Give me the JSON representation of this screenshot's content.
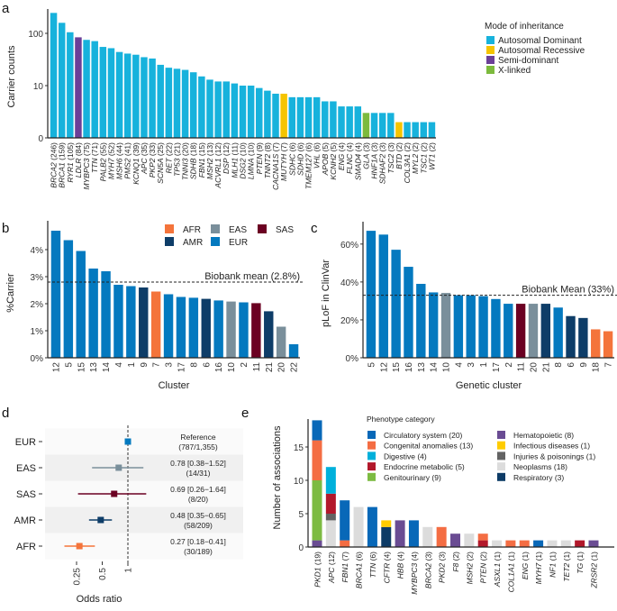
{
  "colors": {
    "inheritance": {
      "Autosomal Dominant": "#17b2dc",
      "Autosomal Recessive": "#f5c400",
      "Semi-dominant": "#6b3f98",
      "X-linked": "#7cba3d"
    },
    "ancestry": {
      "AFR": "#f4743b",
      "AMR": "#0e3d68",
      "EAS": "#7a8f9b",
      "EUR": "#0479bf",
      "SAS": "#6b0022"
    },
    "phenotype": {
      "Circulatory system": "#0868b8",
      "Congenital anomalies": "#f46d43",
      "Digestive": "#00b0db",
      "Endocrine metabolic": "#b2182b",
      "Genitourinary": "#7dbb42",
      "Hematopoietic": "#6a4c93",
      "Infectious diseases": "#ffcc00",
      "Injuries & poisonings": "#636363",
      "Neoplasms": "#dcdcdc",
      "Respiratory": "#0d3b66"
    }
  },
  "chart_data": [
    {
      "panel": "a",
      "type": "bar",
      "ylabel": "Carrier counts",
      "yscale": "log",
      "yticks": [
        {
          "value": 1,
          "label": "0"
        },
        {
          "value": 10,
          "label": "10"
        },
        {
          "value": 100,
          "label": "100"
        }
      ],
      "legend_title": "Mode of inheritance",
      "legend_placement": "top-right",
      "legend": [
        "Autosomal Dominant",
        "Autosomal Recessive",
        "Semi-dominant",
        "X-linked"
      ],
      "bars": [
        {
          "gene": "BRCA2",
          "count": 246,
          "mode": "Autosomal Dominant"
        },
        {
          "gene": "BRCA1",
          "count": 159,
          "mode": "Autosomal Dominant"
        },
        {
          "gene": "RYR1",
          "count": 105,
          "mode": "Autosomal Dominant"
        },
        {
          "gene": "LDLR",
          "count": 84,
          "mode": "Semi-dominant"
        },
        {
          "gene": "MYBPC3",
          "count": 75,
          "mode": "Autosomal Dominant"
        },
        {
          "gene": "TTN",
          "count": 71,
          "mode": "Autosomal Dominant"
        },
        {
          "gene": "PALB2",
          "count": 55,
          "mode": "Autosomal Dominant"
        },
        {
          "gene": "MYH7",
          "count": 52,
          "mode": "Autosomal Dominant"
        },
        {
          "gene": "MSH6",
          "count": 44,
          "mode": "Autosomal Dominant"
        },
        {
          "gene": "PMS2",
          "count": 41,
          "mode": "Autosomal Dominant"
        },
        {
          "gene": "KCNQ1",
          "count": 39,
          "mode": "Autosomal Dominant"
        },
        {
          "gene": "APC",
          "count": 35,
          "mode": "Autosomal Dominant"
        },
        {
          "gene": "PKP2",
          "count": 33,
          "mode": "Autosomal Dominant"
        },
        {
          "gene": "SCN5A",
          "count": 25,
          "mode": "Autosomal Dominant"
        },
        {
          "gene": "RET",
          "count": 22,
          "mode": "Autosomal Dominant"
        },
        {
          "gene": "TP53",
          "count": 21,
          "mode": "Autosomal Dominant"
        },
        {
          "gene": "TNNI3",
          "count": 20,
          "mode": "Autosomal Dominant"
        },
        {
          "gene": "SDHB",
          "count": 18,
          "mode": "Autosomal Dominant"
        },
        {
          "gene": "FBN1",
          "count": 15,
          "mode": "Autosomal Dominant"
        },
        {
          "gene": "MSH2",
          "count": 13,
          "mode": "Autosomal Dominant"
        },
        {
          "gene": "ACVRL1",
          "count": 12,
          "mode": "Autosomal Dominant"
        },
        {
          "gene": "DSP",
          "count": 12,
          "mode": "Autosomal Dominant"
        },
        {
          "gene": "MLH1",
          "count": 11,
          "mode": "Autosomal Dominant"
        },
        {
          "gene": "DSG2",
          "count": 10,
          "mode": "Autosomal Dominant"
        },
        {
          "gene": "LMNA",
          "count": 10,
          "mode": "Autosomal Dominant"
        },
        {
          "gene": "PTEN",
          "count": 9,
          "mode": "Autosomal Dominant"
        },
        {
          "gene": "TNNT2",
          "count": 8,
          "mode": "Autosomal Dominant"
        },
        {
          "gene": "CACNA1S",
          "count": 7,
          "mode": "Autosomal Dominant"
        },
        {
          "gene": "MUTYH",
          "count": 7,
          "mode": "Autosomal Recessive"
        },
        {
          "gene": "SDHC",
          "count": 6,
          "mode": "Autosomal Dominant"
        },
        {
          "gene": "SDHD",
          "count": 6,
          "mode": "Autosomal Dominant"
        },
        {
          "gene": "TMEM127",
          "count": 6,
          "mode": "Autosomal Dominant"
        },
        {
          "gene": "VHL",
          "count": 6,
          "mode": "Autosomal Dominant"
        },
        {
          "gene": "APOB",
          "count": 5,
          "mode": "Autosomal Dominant"
        },
        {
          "gene": "KCNH2",
          "count": 5,
          "mode": "Autosomal Dominant"
        },
        {
          "gene": "ENG",
          "count": 4,
          "mode": "Autosomal Dominant"
        },
        {
          "gene": "FLNC",
          "count": 4,
          "mode": "Autosomal Dominant"
        },
        {
          "gene": "SMAD4",
          "count": 4,
          "mode": "Autosomal Dominant"
        },
        {
          "gene": "GLA",
          "count": 3,
          "mode": "X-linked"
        },
        {
          "gene": "HNF1A",
          "count": 3,
          "mode": "Autosomal Dominant"
        },
        {
          "gene": "SDHAF2",
          "count": 3,
          "mode": "Autosomal Dominant"
        },
        {
          "gene": "TSC2",
          "count": 3,
          "mode": "Autosomal Dominant"
        },
        {
          "gene": "BTD",
          "count": 2,
          "mode": "Autosomal Recessive"
        },
        {
          "gene": "COL3A1",
          "count": 2,
          "mode": "Autosomal Dominant"
        },
        {
          "gene": "MYL2",
          "count": 2,
          "mode": "Autosomal Dominant"
        },
        {
          "gene": "TSC1",
          "count": 2,
          "mode": "Autosomal Dominant"
        },
        {
          "gene": "WT1",
          "count": 2,
          "mode": "Autosomal Dominant"
        }
      ]
    },
    {
      "panel": "b",
      "type": "bar",
      "xlabel": "Cluster",
      "ylabel": "%Carrier",
      "ylim": [
        0,
        4.8
      ],
      "yticks": [
        "0%",
        "1%",
        "2%",
        "3%",
        "4%"
      ],
      "mean_line": 2.8,
      "mean_label": "Biobank mean (2.8%)",
      "legend": [
        "AFR",
        "EAS",
        "SAS",
        "AMR",
        "EUR"
      ],
      "legend_placement": "top-right",
      "bars": [
        {
          "cluster": "12",
          "value": 4.7,
          "ancestry": "EUR"
        },
        {
          "cluster": "5",
          "value": 4.35,
          "ancestry": "EUR"
        },
        {
          "cluster": "15",
          "value": 3.95,
          "ancestry": "EUR"
        },
        {
          "cluster": "13",
          "value": 3.3,
          "ancestry": "EUR"
        },
        {
          "cluster": "14",
          "value": 3.2,
          "ancestry": "EUR"
        },
        {
          "cluster": "4",
          "value": 2.7,
          "ancestry": "EUR"
        },
        {
          "cluster": "1",
          "value": 2.65,
          "ancestry": "EUR"
        },
        {
          "cluster": "9",
          "value": 2.6,
          "ancestry": "AMR"
        },
        {
          "cluster": "7",
          "value": 2.45,
          "ancestry": "AFR"
        },
        {
          "cluster": "3",
          "value": 2.35,
          "ancestry": "EUR"
        },
        {
          "cluster": "17",
          "value": 2.25,
          "ancestry": "EUR"
        },
        {
          "cluster": "8",
          "value": 2.22,
          "ancestry": "EUR"
        },
        {
          "cluster": "6",
          "value": 2.18,
          "ancestry": "AMR"
        },
        {
          "cluster": "16",
          "value": 2.12,
          "ancestry": "EUR"
        },
        {
          "cluster": "10",
          "value": 2.08,
          "ancestry": "EAS"
        },
        {
          "cluster": "2",
          "value": 2.05,
          "ancestry": "EUR"
        },
        {
          "cluster": "11",
          "value": 2.02,
          "ancestry": "SAS"
        },
        {
          "cluster": "21",
          "value": 1.72,
          "ancestry": "AMR"
        },
        {
          "cluster": "20",
          "value": 1.15,
          "ancestry": "EAS"
        },
        {
          "cluster": "22",
          "value": 0.5,
          "ancestry": "EUR"
        }
      ]
    },
    {
      "panel": "c",
      "type": "bar",
      "xlabel": "Genetic cluster",
      "ylabel": "pLoF in ClinVar",
      "ylim": [
        0,
        68
      ],
      "yticks": [
        "0%",
        "20%",
        "40%",
        "60%"
      ],
      "mean_line": 33,
      "mean_label": "Biobank Mean (33%)",
      "bars": [
        {
          "cluster": "5",
          "value": 67,
          "ancestry": "EUR"
        },
        {
          "cluster": "12",
          "value": 65,
          "ancestry": "EUR"
        },
        {
          "cluster": "15",
          "value": 57,
          "ancestry": "EUR"
        },
        {
          "cluster": "16",
          "value": 48,
          "ancestry": "EUR"
        },
        {
          "cluster": "13",
          "value": 39,
          "ancestry": "EUR"
        },
        {
          "cluster": "14",
          "value": 34.5,
          "ancestry": "EUR"
        },
        {
          "cluster": "10",
          "value": 34.2,
          "ancestry": "EAS"
        },
        {
          "cluster": "4",
          "value": 33,
          "ancestry": "EUR"
        },
        {
          "cluster": "3",
          "value": 33,
          "ancestry": "EUR"
        },
        {
          "cluster": "1",
          "value": 32.5,
          "ancestry": "EUR"
        },
        {
          "cluster": "17",
          "value": 31,
          "ancestry": "EUR"
        },
        {
          "cluster": "2",
          "value": 28.5,
          "ancestry": "EUR"
        },
        {
          "cluster": "11",
          "value": 28.5,
          "ancestry": "SAS"
        },
        {
          "cluster": "20",
          "value": 28.5,
          "ancestry": "EAS"
        },
        {
          "cluster": "21",
          "value": 28.5,
          "ancestry": "AMR"
        },
        {
          "cluster": "8",
          "value": 26.5,
          "ancestry": "EUR"
        },
        {
          "cluster": "6",
          "value": 22,
          "ancestry": "AMR"
        },
        {
          "cluster": "9",
          "value": 21,
          "ancestry": "AMR"
        },
        {
          "cluster": "18",
          "value": 15,
          "ancestry": "AFR"
        },
        {
          "cluster": "7",
          "value": 14,
          "ancestry": "AFR"
        }
      ]
    },
    {
      "panel": "d",
      "type": "scatter",
      "subtype": "forest",
      "xlabel": "Odds ratio",
      "xscale": "log",
      "xticks": [
        "0.25",
        "0.5",
        "1"
      ],
      "reference_line": 1,
      "rows": [
        {
          "group": "EUR",
          "or": 1,
          "lo": null,
          "hi": null,
          "label": "Reference",
          "counts": "(787/1,355)"
        },
        {
          "group": "EAS",
          "or": 0.78,
          "lo": 0.38,
          "hi": 1.52,
          "label": "0.78 [0.38−1.52]",
          "counts": "(14/31)"
        },
        {
          "group": "SAS",
          "or": 0.69,
          "lo": 0.26,
          "hi": 1.64,
          "label": "0.69 [0.26−1.64]",
          "counts": "(8/20)"
        },
        {
          "group": "AMR",
          "or": 0.48,
          "lo": 0.35,
          "hi": 0.65,
          "label": "0.48 [0.35−0.65]",
          "counts": "(58/209)"
        },
        {
          "group": "AFR",
          "or": 0.27,
          "lo": 0.18,
          "hi": 0.41,
          "label": "0.27 [0.18−0.41]",
          "counts": "(30/189)"
        }
      ]
    },
    {
      "panel": "e",
      "type": "bar",
      "subtype": "stacked",
      "ylabel": "Number of associations",
      "ylim": [
        0,
        19
      ],
      "yticks": [
        "0",
        "5",
        "10",
        "15"
      ],
      "legend_title": "Phenotype category",
      "legend_placement": "top-right",
      "legend": [
        "Circulatory system (20)",
        "Congenital anomalies (13)",
        "Digestive (4)",
        "Endocrine metabolic (5)",
        "Genitourinary (9)",
        "Hematopoietic (8)",
        "Infectious diseases (1)",
        "Injuries & poisonings (1)",
        "Neoplasms (18)",
        "Respiratory (3)"
      ],
      "legend_keys": [
        "Circulatory system",
        "Congenital anomalies",
        "Digestive",
        "Endocrine metabolic",
        "Genitourinary",
        "Hematopoietic",
        "Infectious diseases",
        "Injuries & poisonings",
        "Neoplasms",
        "Respiratory"
      ],
      "bars": [
        {
          "gene": "PKD1",
          "total": 19,
          "stack": [
            [
              "Hematopoietic",
              1
            ],
            [
              "Genitourinary",
              9
            ],
            [
              "Congenital anomalies",
              6
            ],
            [
              "Circulatory system",
              3
            ]
          ]
        },
        {
          "gene": "APC",
          "total": 12,
          "stack": [
            [
              "Neoplasms",
              4
            ],
            [
              "Injuries & poisonings",
              1
            ],
            [
              "Endocrine metabolic",
              3
            ],
            [
              "Digestive",
              4
            ]
          ]
        },
        {
          "gene": "FBN1",
          "total": 7,
          "stack": [
            [
              "Congenital anomalies",
              1
            ],
            [
              "Circulatory system",
              6
            ]
          ]
        },
        {
          "gene": "BRCA1",
          "total": 6,
          "stack": [
            [
              "Neoplasms",
              6
            ]
          ]
        },
        {
          "gene": "TTN",
          "total": 6,
          "stack": [
            [
              "Circulatory system",
              6
            ]
          ]
        },
        {
          "gene": "CFTR",
          "total": 4,
          "stack": [
            [
              "Respiratory",
              3
            ],
            [
              "Infectious diseases",
              1
            ]
          ]
        },
        {
          "gene": "HBB",
          "total": 4,
          "stack": [
            [
              "Hematopoietic",
              4
            ]
          ]
        },
        {
          "gene": "MYBPC3",
          "total": 4,
          "stack": [
            [
              "Circulatory system",
              4
            ]
          ]
        },
        {
          "gene": "BRCA2",
          "total": 3,
          "stack": [
            [
              "Neoplasms",
              3
            ]
          ]
        },
        {
          "gene": "PKD2",
          "total": 3,
          "stack": [
            [
              "Congenital anomalies",
              3
            ]
          ]
        },
        {
          "gene": "F8",
          "total": 2,
          "stack": [
            [
              "Hematopoietic",
              2
            ]
          ]
        },
        {
          "gene": "MSH2",
          "total": 2,
          "stack": [
            [
              "Neoplasms",
              2
            ]
          ]
        },
        {
          "gene": "PTEN",
          "total": 2,
          "stack": [
            [
              "Endocrine metabolic",
              1
            ],
            [
              "Congenital anomalies",
              1
            ]
          ]
        },
        {
          "gene": "ASXL1",
          "total": 1,
          "stack": [
            [
              "Neoplasms",
              1
            ]
          ]
        },
        {
          "gene": "COL1A1",
          "total": 1,
          "stack": [
            [
              "Congenital anomalies",
              1
            ]
          ]
        },
        {
          "gene": "ENG",
          "total": 1,
          "stack": [
            [
              "Congenital anomalies",
              1
            ]
          ]
        },
        {
          "gene": "MYH7",
          "total": 1,
          "stack": [
            [
              "Circulatory system",
              1
            ]
          ]
        },
        {
          "gene": "NF1",
          "total": 1,
          "stack": [
            [
              "Neoplasms",
              1
            ]
          ]
        },
        {
          "gene": "TET2",
          "total": 1,
          "stack": [
            [
              "Neoplasms",
              1
            ]
          ]
        },
        {
          "gene": "TG",
          "total": 1,
          "stack": [
            [
              "Endocrine metabolic",
              1
            ]
          ]
        },
        {
          "gene": "ZRSR2",
          "total": 1,
          "stack": [
            [
              "Hematopoietic",
              1
            ]
          ]
        }
      ]
    }
  ],
  "panel_letters": [
    "a",
    "b",
    "c",
    "d",
    "e"
  ]
}
